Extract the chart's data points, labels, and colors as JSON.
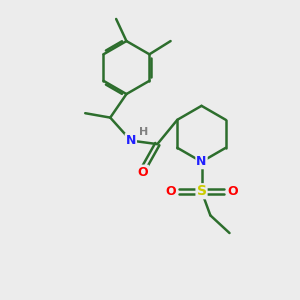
{
  "background_color": "#ececec",
  "bond_color": "#2d6e2d",
  "bond_width": 1.8,
  "atom_colors": {
    "N": "#2020ff",
    "O": "#ff0000",
    "S": "#cccc00",
    "C": "#2d6e2d",
    "H": "#808080"
  },
  "figsize": [
    3.0,
    3.0
  ],
  "dpi": 100,
  "xlim": [
    0,
    10
  ],
  "ylim": [
    0,
    10
  ]
}
